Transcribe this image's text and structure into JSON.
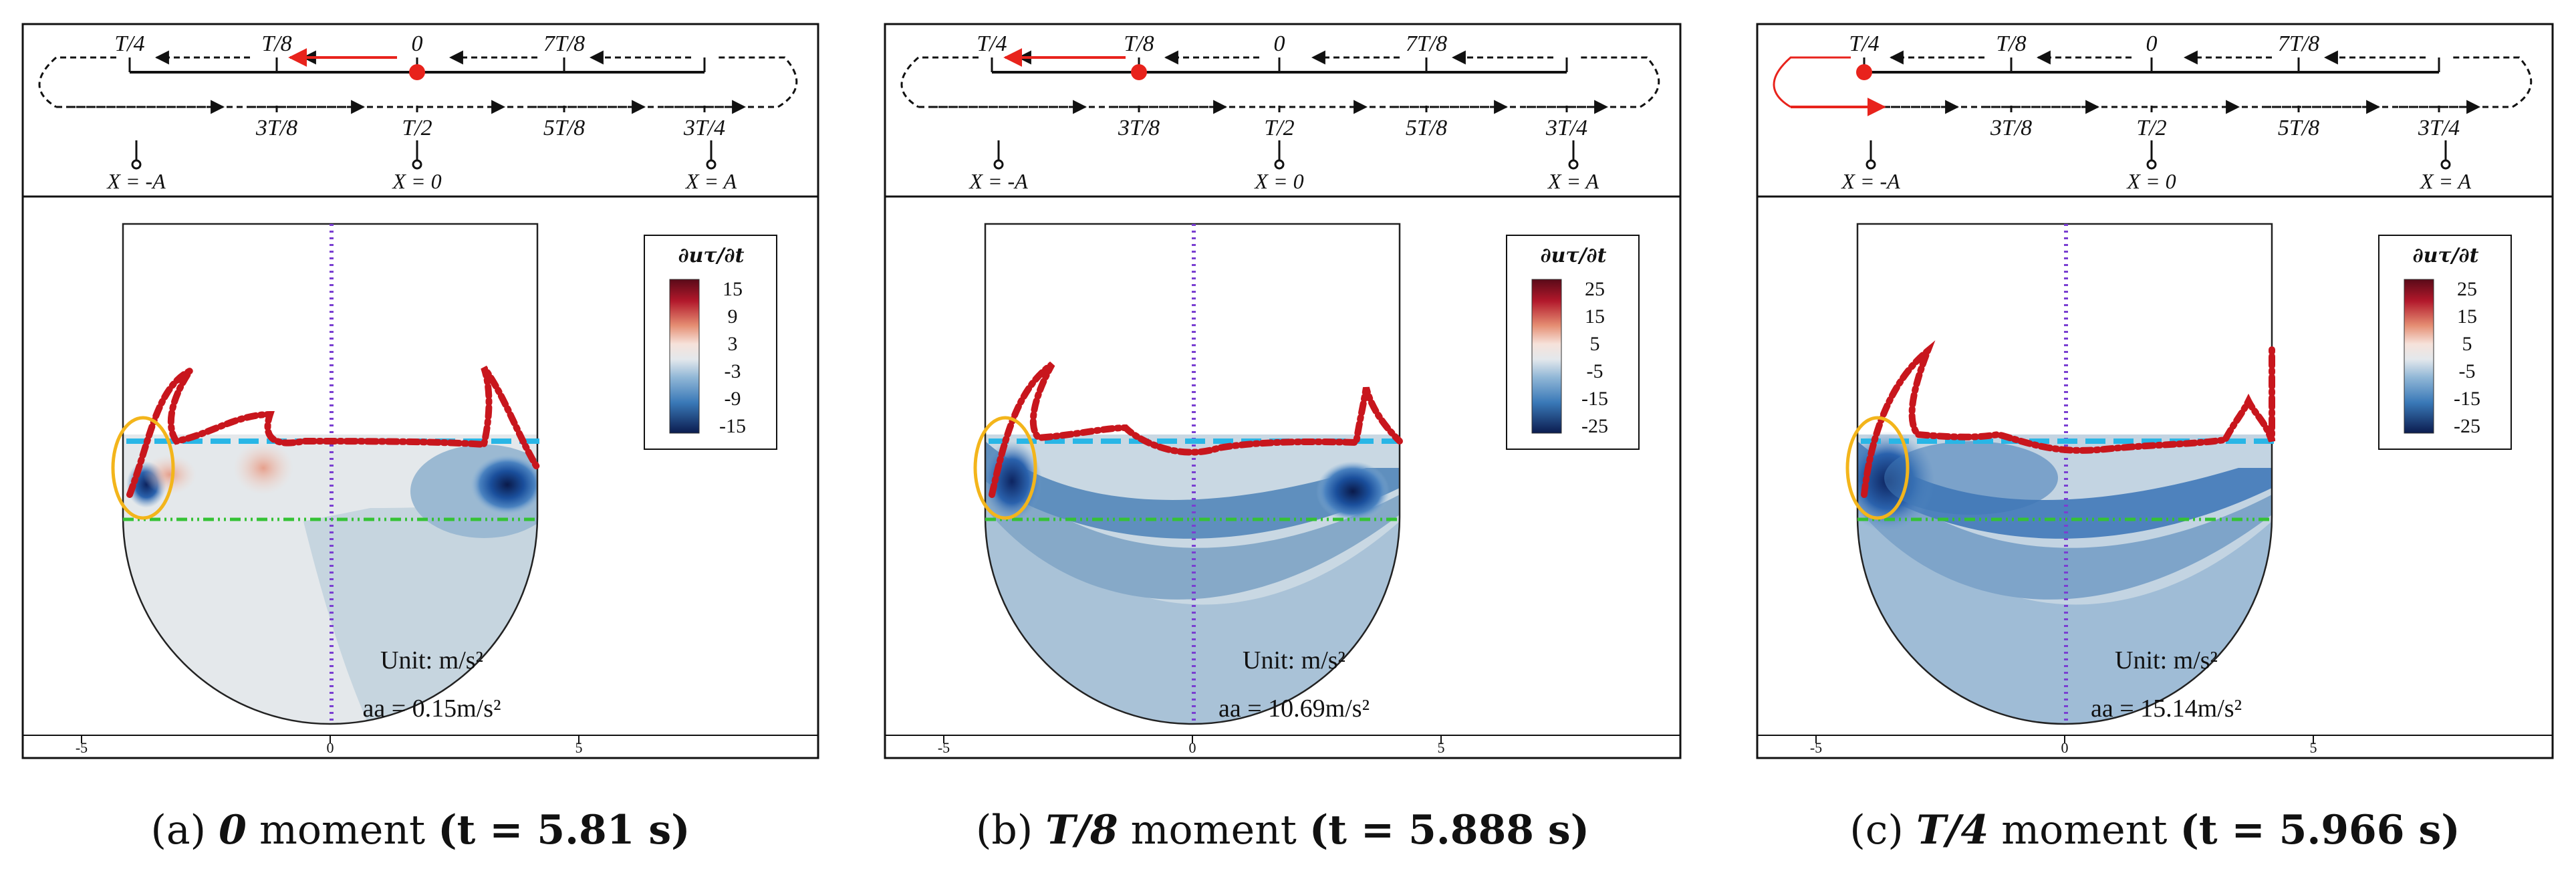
{
  "panels": [
    {
      "caption": {
        "letter": "(a)",
        "phase": "0",
        "word": "moment",
        "time": "(t = 5.81 s)"
      },
      "diagram": {
        "active_label": "0",
        "active_node": 4,
        "arrow_out": 3,
        "wrap_left": false
      },
      "colorbar": {
        "title": "∂uτ/∂t",
        "ticks": [
          "15",
          "9",
          "3",
          "-3",
          "-9",
          "-15"
        ]
      },
      "unit": "Unit: m/s²",
      "accel": "aa = 0.15m/s²",
      "field_level": 0
    },
    {
      "caption": {
        "letter": "(b)",
        "phase": "T/8",
        "word": "moment",
        "time": "(t = 5.888 s)"
      },
      "diagram": {
        "active_label": "T/8",
        "active_node": 2,
        "arrow_out": 1,
        "wrap_left": false
      },
      "colorbar": {
        "title": "∂uτ/∂t",
        "ticks": [
          "25",
          "15",
          "5",
          "-5",
          "-15",
          "-25"
        ]
      },
      "unit": "Unit: m/s²",
      "accel": "aa = 10.69m/s²",
      "field_level": 1
    },
    {
      "caption": {
        "letter": "(c)",
        "phase": "T/4",
        "word": "moment",
        "time": "(t = 5.966 s)"
      },
      "diagram": {
        "active_label": "T/4",
        "active_node": 0,
        "arrow_out": -1,
        "wrap_left": true
      },
      "colorbar": {
        "title": "∂uτ/∂t",
        "ticks": [
          "25",
          "15",
          "5",
          "-5",
          "-15",
          "-25"
        ]
      },
      "unit": "Unit: m/s²",
      "accel": "aa = 15.14m/s²",
      "field_level": 2
    }
  ],
  "diagram_labels": {
    "top": [
      "T/4",
      "T/8",
      "0",
      "7T/8"
    ],
    "bottom": [
      "3T/8",
      "T/2",
      "5T/8",
      "3T/4"
    ],
    "positions": [
      "X = -A",
      "X = 0",
      "X = A"
    ]
  },
  "axis_ticks": [
    "-5",
    "0",
    "5"
  ],
  "colors": {
    "active": "#e8231c",
    "free_surface": "#c8161d",
    "still_level": "#29b6e6",
    "mid_level": "#35c235",
    "centerline": "#7a3fd1",
    "highlight": "#f3b51b"
  }
}
